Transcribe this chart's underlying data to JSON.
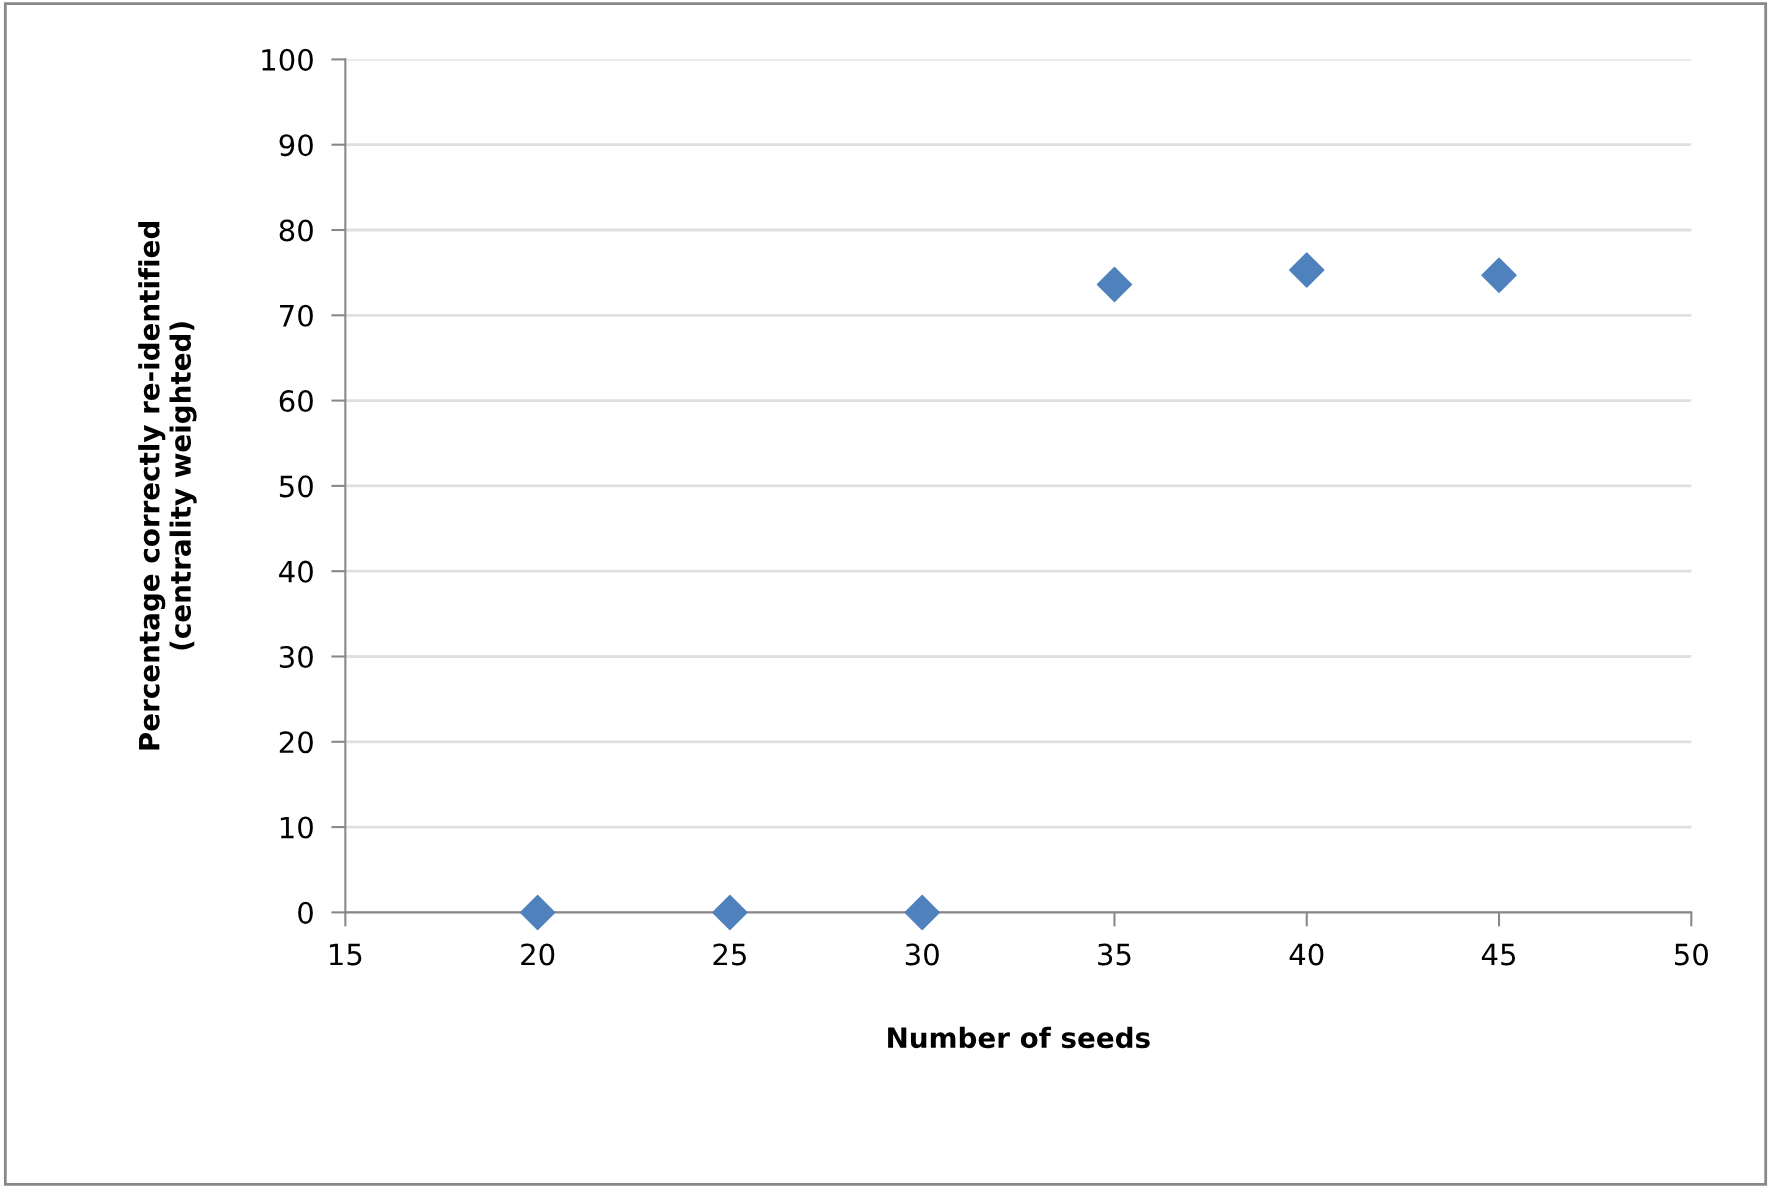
{
  "chart_data": {
    "type": "scatter",
    "xlabel": "Number of seeds",
    "ylabel": "Percentage correctly re-identified\n(centrality weighted)",
    "x": [
      20,
      25,
      30,
      35,
      40,
      45
    ],
    "series": [
      {
        "color": "#4f81bd",
        "values": [
          0,
          0,
          0,
          73.6,
          75.3,
          74.7
        ]
      }
    ],
    "xlim": [
      15,
      50
    ],
    "xticks": [
      15,
      20,
      25,
      30,
      35,
      40,
      45,
      50
    ],
    "ylim": [
      0,
      100
    ],
    "yticks": [
      0,
      10,
      20,
      30,
      40,
      50,
      60,
      70,
      80,
      90,
      100
    ],
    "grid": "y",
    "marker": "diamond"
  }
}
